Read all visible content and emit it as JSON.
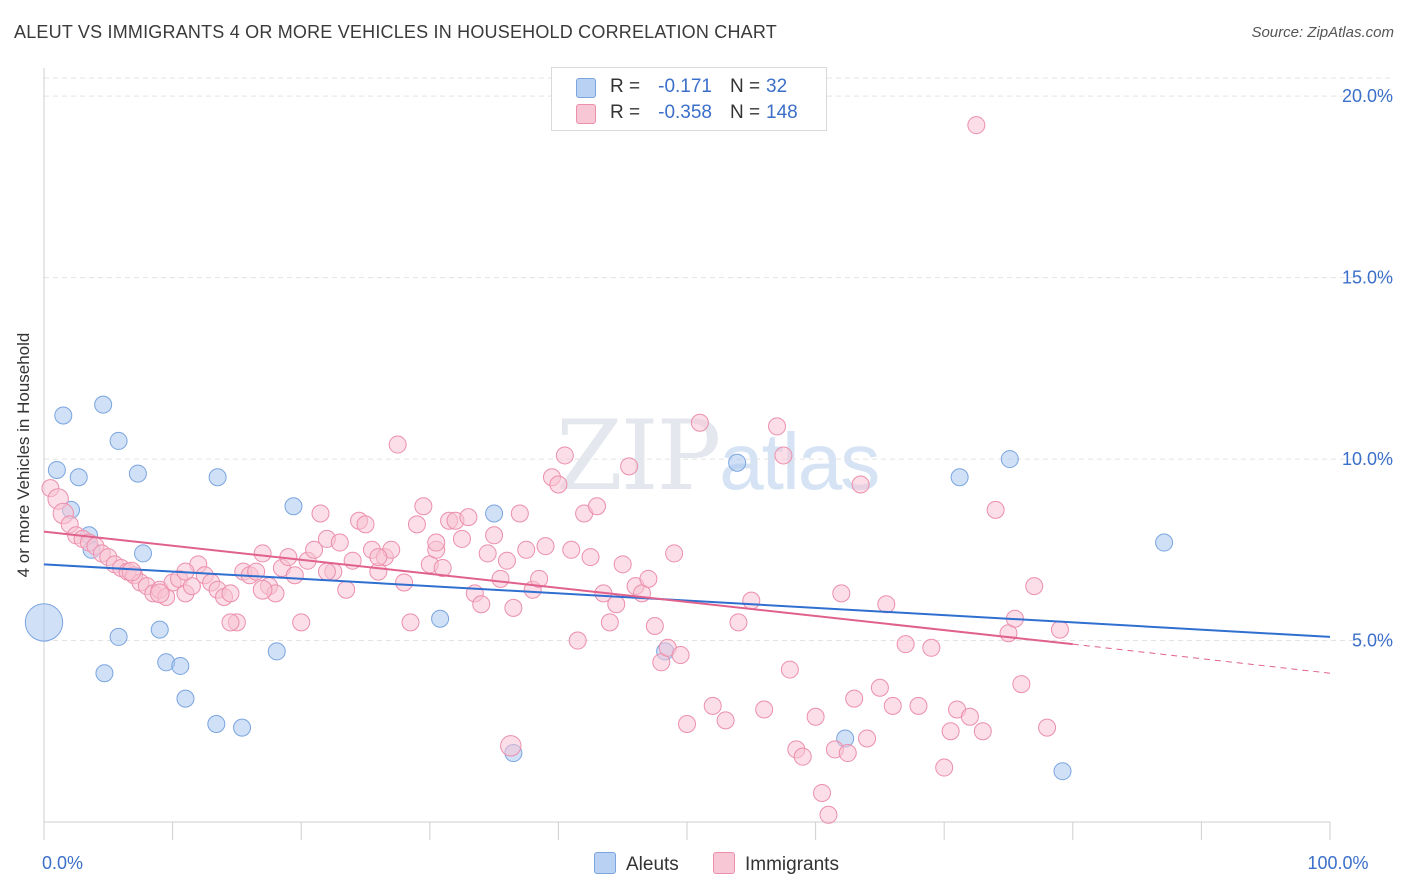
{
  "title": "ALEUT VS IMMIGRANTS 4 OR MORE VEHICLES IN HOUSEHOLD CORRELATION CHART",
  "source": "Source: ZipAtlas.com",
  "watermark": {
    "zip": "ZIP",
    "atlas": "atlas"
  },
  "legend_top": [
    {
      "r_label": "R =",
      "r_value": "-0.171",
      "n_label": "N =",
      "n_value": "32",
      "color": "#b9d1f2",
      "border": "#7aa5e0"
    },
    {
      "r_label": "R =",
      "r_value": "-0.358",
      "n_label": "N =",
      "n_value": "148",
      "color": "#f8c7d6",
      "border": "#ec8fac"
    }
  ],
  "legend_bottom": [
    {
      "label": "Aleuts",
      "color": "#b9d1f2",
      "border": "#7aa5e0"
    },
    {
      "label": "Immigrants",
      "color": "#f8c7d6",
      "border": "#ec8fac"
    }
  ],
  "chart_data": {
    "type": "scatter",
    "title": "ALEUT VS IMMIGRANTS 4 OR MORE VEHICLES IN HOUSEHOLD CORRELATION CHART",
    "xlabel": "",
    "ylabel": "4 or more Vehicles in Household",
    "xlim": [
      0,
      100
    ],
    "ylim": [
      0,
      20.5
    ],
    "x_ticks": [
      0,
      10,
      20,
      30,
      40,
      50,
      60,
      70,
      80,
      90,
      100
    ],
    "x_tick_labels": {
      "0": "0.0%",
      "100": "100.0%"
    },
    "y_ticks": [
      5,
      10,
      15,
      20
    ],
    "y_tick_labels": [
      "5.0%",
      "10.0%",
      "15.0%",
      "20.0%"
    ],
    "grid": true,
    "legend_position": "top-center",
    "series": [
      {
        "name": "Aleuts",
        "color": "#a9c6ef",
        "stroke": "#7aa5e0",
        "trend_color": "#2f6fd0",
        "trend": {
          "x0": 0,
          "y0": 7.1,
          "x1": 100,
          "y1": 5.1
        },
        "points": [
          [
            0.0,
            5.5,
            2.2
          ],
          [
            1.0,
            9.7,
            1
          ],
          [
            1.5,
            11.2,
            1
          ],
          [
            2.1,
            8.6,
            1
          ],
          [
            2.7,
            9.5,
            1
          ],
          [
            3.5,
            7.9,
            1
          ],
          [
            3.7,
            7.5,
            1
          ],
          [
            4.6,
            11.5,
            1
          ],
          [
            5.8,
            10.5,
            1
          ],
          [
            7.3,
            9.6,
            1
          ],
          [
            7.7,
            7.4,
            1
          ],
          [
            4.7,
            4.1,
            1
          ],
          [
            5.8,
            5.1,
            1
          ],
          [
            9.0,
            5.3,
            1
          ],
          [
            9.5,
            4.4,
            1
          ],
          [
            10.6,
            4.3,
            1
          ],
          [
            11.0,
            3.4,
            1
          ],
          [
            13.5,
            9.5,
            1
          ],
          [
            13.4,
            2.7,
            1
          ],
          [
            15.4,
            2.6,
            1
          ],
          [
            18.1,
            4.7,
            1
          ],
          [
            19.4,
            8.7,
            1
          ],
          [
            30.8,
            5.6,
            1
          ],
          [
            35.0,
            8.5,
            1
          ],
          [
            36.5,
            1.9,
            1
          ],
          [
            48.3,
            4.7,
            1
          ],
          [
            53.9,
            9.9,
            1
          ],
          [
            62.3,
            2.3,
            1
          ],
          [
            71.2,
            9.5,
            1
          ],
          [
            75.1,
            10.0,
            1
          ],
          [
            87.1,
            7.7,
            1
          ],
          [
            79.2,
            1.4,
            1
          ]
        ]
      },
      {
        "name": "Immigrants",
        "color": "#f8c3d3",
        "stroke": "#ec8fac",
        "trend_color": "#e0618c",
        "trend": {
          "x0": 0,
          "y0": 8.0,
          "x1": 80,
          "y1": 4.9
        },
        "trend_dashed": {
          "x0": 80,
          "y0": 4.9,
          "x1": 100,
          "y1": 4.1
        },
        "points": [
          [
            0.5,
            9.2,
            1
          ],
          [
            1.1,
            8.9,
            1.2
          ],
          [
            1.5,
            8.5,
            1.2
          ],
          [
            2.0,
            8.2,
            1
          ],
          [
            2.5,
            7.9,
            1
          ],
          [
            3.0,
            7.8,
            1
          ],
          [
            3.5,
            7.7,
            1
          ],
          [
            4.0,
            7.6,
            1
          ],
          [
            4.5,
            7.4,
            1
          ],
          [
            5.0,
            7.3,
            1
          ],
          [
            5.5,
            7.1,
            1
          ],
          [
            6.0,
            7.0,
            1
          ],
          [
            6.5,
            6.9,
            1
          ],
          [
            7.0,
            6.8,
            1
          ],
          [
            7.5,
            6.6,
            1
          ],
          [
            8.0,
            6.5,
            1
          ],
          [
            8.5,
            6.3,
            1
          ],
          [
            9.0,
            6.4,
            1
          ],
          [
            9.5,
            6.2,
            1
          ],
          [
            10.0,
            6.6,
            1
          ],
          [
            10.5,
            6.7,
            1
          ],
          [
            11.0,
            6.3,
            1
          ],
          [
            11.5,
            6.5,
            1
          ],
          [
            12.0,
            7.1,
            1
          ],
          [
            12.5,
            6.8,
            1
          ],
          [
            13.0,
            6.6,
            1
          ],
          [
            13.5,
            6.4,
            1
          ],
          [
            14.0,
            6.2,
            1
          ],
          [
            14.5,
            6.3,
            1
          ],
          [
            15.0,
            5.5,
            1
          ],
          [
            15.5,
            6.9,
            1
          ],
          [
            16.0,
            6.8,
            1
          ],
          [
            16.5,
            6.9,
            1
          ],
          [
            17.0,
            7.4,
            1
          ],
          [
            17.5,
            6.5,
            1
          ],
          [
            18.0,
            6.3,
            1
          ],
          [
            18.5,
            7.0,
            1
          ],
          [
            19.0,
            7.3,
            1
          ],
          [
            19.5,
            6.8,
            1
          ],
          [
            20.0,
            5.5,
            1
          ],
          [
            20.5,
            7.2,
            1
          ],
          [
            21.0,
            7.5,
            1
          ],
          [
            21.5,
            8.5,
            1
          ],
          [
            22.0,
            7.8,
            1
          ],
          [
            22.5,
            6.9,
            1
          ],
          [
            23.0,
            7.7,
            1
          ],
          [
            23.5,
            6.4,
            1
          ],
          [
            24.0,
            7.2,
            1
          ],
          [
            24.5,
            8.3,
            1
          ],
          [
            25.0,
            8.2,
            1
          ],
          [
            25.5,
            7.5,
            1
          ],
          [
            26.0,
            6.9,
            1
          ],
          [
            26.5,
            7.3,
            1
          ],
          [
            27.0,
            7.5,
            1
          ],
          [
            27.5,
            10.4,
            1
          ],
          [
            28.0,
            6.6,
            1
          ],
          [
            28.5,
            5.5,
            1
          ],
          [
            29.0,
            8.2,
            1
          ],
          [
            29.5,
            8.7,
            1
          ],
          [
            30.0,
            7.1,
            1
          ],
          [
            30.5,
            7.5,
            1
          ],
          [
            31.0,
            7.0,
            1
          ],
          [
            31.5,
            8.3,
            1
          ],
          [
            32.0,
            8.3,
            1
          ],
          [
            32.5,
            7.8,
            1
          ],
          [
            33.0,
            8.4,
            1
          ],
          [
            33.5,
            6.3,
            1
          ],
          [
            34.0,
            6.0,
            1
          ],
          [
            34.5,
            7.4,
            1
          ],
          [
            35.0,
            7.9,
            1
          ],
          [
            35.5,
            6.7,
            1
          ],
          [
            36.0,
            7.2,
            1
          ],
          [
            36.5,
            5.9,
            1
          ],
          [
            37.0,
            8.5,
            1
          ],
          [
            37.5,
            7.5,
            1
          ],
          [
            38.0,
            6.4,
            1
          ],
          [
            38.5,
            6.7,
            1
          ],
          [
            39.0,
            7.6,
            1
          ],
          [
            39.5,
            9.5,
            1
          ],
          [
            40.0,
            9.3,
            1
          ],
          [
            40.5,
            10.1,
            1
          ],
          [
            41.0,
            7.5,
            1
          ],
          [
            41.5,
            5.0,
            1
          ],
          [
            42.0,
            8.5,
            1
          ],
          [
            42.5,
            7.3,
            1
          ],
          [
            43.0,
            8.7,
            1
          ],
          [
            43.5,
            6.3,
            1
          ],
          [
            44.0,
            5.5,
            1
          ],
          [
            44.5,
            6.0,
            1
          ],
          [
            45.0,
            7.1,
            1
          ],
          [
            45.5,
            9.8,
            1
          ],
          [
            46.0,
            6.5,
            1
          ],
          [
            46.5,
            6.3,
            1
          ],
          [
            47.0,
            6.7,
            1
          ],
          [
            47.5,
            5.4,
            1
          ],
          [
            48.0,
            4.4,
            1
          ],
          [
            48.5,
            4.8,
            1
          ],
          [
            49.0,
            7.4,
            1
          ],
          [
            49.5,
            4.6,
            1
          ],
          [
            50.0,
            2.7,
            1
          ],
          [
            51.0,
            11.0,
            1
          ],
          [
            52.0,
            3.2,
            1
          ],
          [
            53.0,
            2.8,
            1
          ],
          [
            54.0,
            5.5,
            1
          ],
          [
            55.0,
            6.1,
            1
          ],
          [
            56.0,
            3.1,
            1
          ],
          [
            57.0,
            10.9,
            1
          ],
          [
            57.5,
            10.1,
            1
          ],
          [
            58.0,
            4.2,
            1
          ],
          [
            58.5,
            2.0,
            1
          ],
          [
            59.0,
            1.8,
            1
          ],
          [
            60.0,
            2.9,
            1
          ],
          [
            60.5,
            0.8,
            1
          ],
          [
            61.0,
            0.2,
            1
          ],
          [
            61.5,
            2.0,
            1
          ],
          [
            62.0,
            6.3,
            1
          ],
          [
            62.5,
            1.9,
            1
          ],
          [
            63.0,
            3.4,
            1
          ],
          [
            63.5,
            9.3,
            1
          ],
          [
            64.0,
            2.3,
            1
          ],
          [
            65.0,
            3.7,
            1
          ],
          [
            65.5,
            6.0,
            1
          ],
          [
            66.0,
            3.2,
            1
          ],
          [
            67.0,
            4.9,
            1
          ],
          [
            68.0,
            3.2,
            1
          ],
          [
            69.0,
            4.8,
            1
          ],
          [
            70.0,
            1.5,
            1
          ],
          [
            70.5,
            2.5,
            1
          ],
          [
            71.0,
            3.1,
            1
          ],
          [
            72.0,
            2.9,
            1
          ],
          [
            73.0,
            2.5,
            1
          ],
          [
            74.0,
            8.6,
            1
          ],
          [
            75.0,
            5.2,
            1
          ],
          [
            75.5,
            5.6,
            1
          ],
          [
            76.0,
            3.8,
            1
          ],
          [
            77.0,
            6.5,
            1
          ],
          [
            78.0,
            2.6,
            1
          ],
          [
            79.0,
            5.3,
            1
          ],
          [
            72.5,
            19.2,
            1
          ],
          [
            36.3,
            2.1,
            1.2
          ],
          [
            22.0,
            6.9,
            1
          ],
          [
            26.0,
            7.3,
            1
          ],
          [
            30.5,
            7.7,
            1
          ],
          [
            14.5,
            5.5,
            1
          ],
          [
            11.0,
            6.9,
            1
          ],
          [
            9.0,
            6.3,
            1.1
          ],
          [
            17.0,
            6.4,
            1.1
          ],
          [
            6.8,
            6.9,
            1.1
          ]
        ]
      }
    ]
  }
}
